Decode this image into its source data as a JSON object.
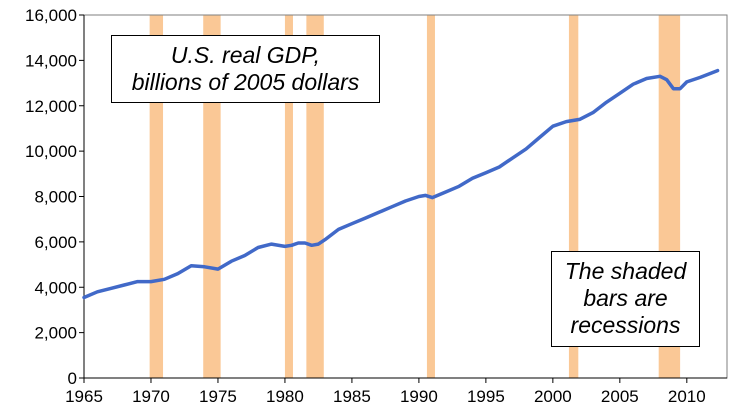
{
  "chart_data": {
    "type": "line",
    "title_lines": [
      "U.S. real GDP,",
      "billions of 2005 dollars"
    ],
    "note_lines": [
      "The shaded",
      "bars are",
      "recessions"
    ],
    "xlim": [
      1965,
      2013
    ],
    "ylim": [
      0,
      16000
    ],
    "x_ticks": [
      1965,
      1970,
      1975,
      1980,
      1985,
      1990,
      1995,
      2000,
      2005,
      2010
    ],
    "y_ticks": [
      0,
      2000,
      4000,
      6000,
      8000,
      10000,
      12000,
      14000,
      16000
    ],
    "x_tick_labels": [
      "1965",
      "1970",
      "1975",
      "1980",
      "1985",
      "1990",
      "1995",
      "2000",
      "2005",
      "2010"
    ],
    "y_tick_labels": [
      "0",
      "2,000",
      "4,000",
      "6,000",
      "8,000",
      "10,000",
      "12,000",
      "14,000",
      "16,000"
    ],
    "grid": false,
    "line_color": "#4169c8",
    "recession_color": "#fac896",
    "recessions": [
      [
        1969.9,
        1970.9
      ],
      [
        1973.9,
        1975.2
      ],
      [
        1980.0,
        1980.6
      ],
      [
        1981.6,
        1982.9
      ],
      [
        1990.6,
        1991.2
      ],
      [
        2001.2,
        2001.9
      ],
      [
        2007.9,
        2009.5
      ]
    ],
    "series": [
      {
        "x": [
          1965,
          1966,
          1967,
          1968,
          1969,
          1970,
          1971,
          1972,
          1973,
          1974,
          1975,
          1976,
          1977,
          1978,
          1979,
          1980,
          1980.5,
          1981,
          1981.5,
          1982,
          1982.5,
          1983,
          1984,
          1985,
          1986,
          1987,
          1988,
          1989,
          1990,
          1990.5,
          1991,
          1992,
          1993,
          1994,
          1995,
          1996,
          1997,
          1998,
          1999,
          2000,
          2001,
          2002,
          2003,
          2004,
          2005,
          2006,
          2007,
          2008,
          2008.5,
          2009,
          2009.5,
          2010,
          2011,
          2012.3
        ],
        "values": [
          3550,
          3800,
          3950,
          4100,
          4250,
          4250,
          4350,
          4600,
          4950,
          4900,
          4800,
          5150,
          5400,
          5750,
          5900,
          5800,
          5850,
          5950,
          5950,
          5850,
          5900,
          6100,
          6550,
          6800,
          7050,
          7300,
          7550,
          7800,
          8000,
          8050,
          7950,
          8200,
          8450,
          8800,
          9050,
          9300,
          9700,
          10100,
          10600,
          11100,
          11300,
          11400,
          11700,
          12150,
          12550,
          12950,
          13200,
          13300,
          13150,
          12750,
          12750,
          13050,
          13250,
          13550
        ]
      }
    ]
  }
}
